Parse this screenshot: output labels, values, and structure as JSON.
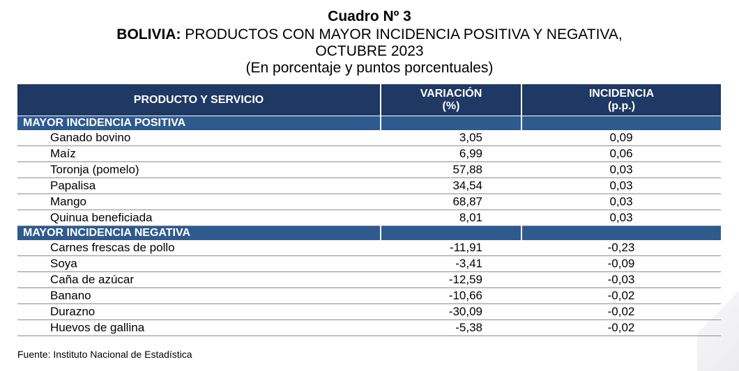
{
  "title": {
    "line1": "Cuadro Nº 3",
    "line2_bold": "BOLIVIA:",
    "line2_rest": " PRODUCTOS CON MAYOR INCIDENCIA POSITIVA Y NEGATIVA,",
    "line3": "OCTUBRE 2023",
    "line4": "(En porcentaje y puntos porcentuales)"
  },
  "table": {
    "headers": {
      "product": "PRODUCTO Y SERVICIO",
      "variation_l1": "VARIACIÓN",
      "variation_l2": "(%)",
      "incidence_l1": "INCIDENCIA",
      "incidence_l2": "(p.p.)"
    },
    "positive": {
      "label": "MAYOR INCIDENCIA POSITIVA",
      "rows": [
        {
          "product": "Ganado bovino",
          "variation": "3,05",
          "incidence": "0,09"
        },
        {
          "product": "Maíz",
          "variation": "6,99",
          "incidence": "0,06"
        },
        {
          "product": "Toronja (pomelo)",
          "variation": "57,88",
          "incidence": "0,03"
        },
        {
          "product": "Papalisa",
          "variation": "34,54",
          "incidence": "0,03"
        },
        {
          "product": "Mango",
          "variation": "68,87",
          "incidence": "0,03"
        },
        {
          "product": "Quinua beneficiada",
          "variation": "8,01",
          "incidence": "0,03"
        }
      ]
    },
    "negative": {
      "label": "MAYOR INCIDENCIA NEGATIVA",
      "rows": [
        {
          "product": "Carnes frescas de pollo",
          "variation": "-11,91",
          "incidence": "-0,23"
        },
        {
          "product": "Soya",
          "variation": "-3,41",
          "incidence": "-0,09"
        },
        {
          "product": "Caña de azúcar",
          "variation": "-12,59",
          "incidence": "-0,03"
        },
        {
          "product": "Banano",
          "variation": "-10,66",
          "incidence": "-0,02"
        },
        {
          "product": "Durazno",
          "variation": "-30,09",
          "incidence": "-0,02"
        },
        {
          "product": "Huevos de gallina",
          "variation": "-5,38",
          "incidence": "-0,02"
        }
      ]
    }
  },
  "source": "Fuente: Instituto Nacional de Estadística"
}
